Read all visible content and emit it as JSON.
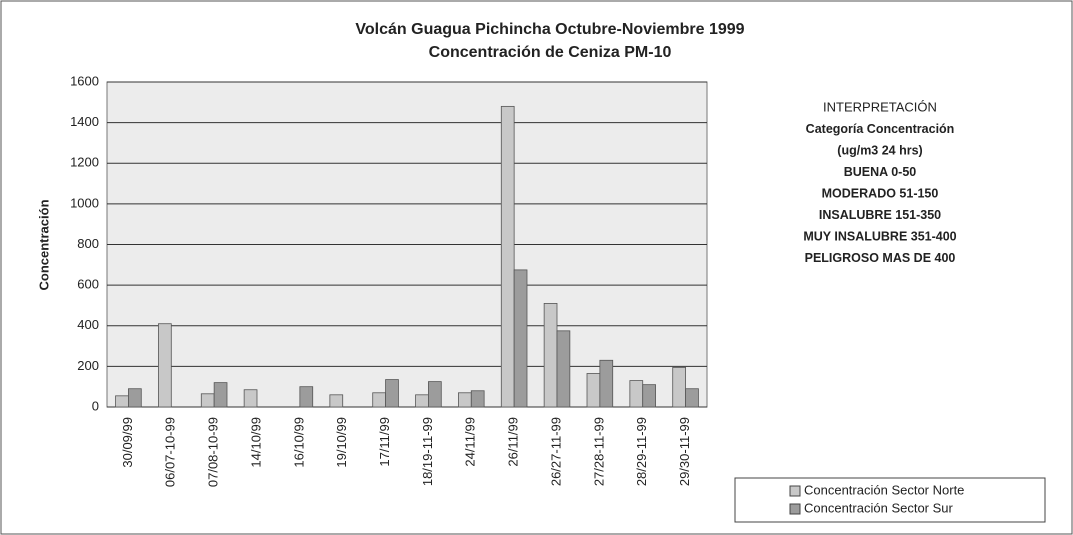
{
  "chart_data": {
    "type": "bar",
    "title": "Volcán Guagua Pichincha Octubre-Noviembre 1999",
    "subtitle": "Concentración de Ceniza PM-10",
    "y_label": "Concentración",
    "categories": [
      "30/09/99",
      "06/07-10-99",
      "07/08-10-99",
      "14/10/99",
      "16/10/99",
      "19/10/99",
      "17/11/99",
      "18/19-11-99",
      "24/11/99",
      "26/11/99",
      "26/27-11-99",
      "27/28-11-99",
      "28/29-11-99",
      "29/30-11-99"
    ],
    "series": [
      {
        "name": "Concentración Sector Norte",
        "color": "#c8c8c8",
        "values": [
          55,
          410,
          65,
          85,
          0,
          60,
          70,
          60,
          70,
          1480,
          510,
          165,
          130,
          195
        ]
      },
      {
        "name": "Concentración Sector Sur",
        "color": "#9c9c9c",
        "values": [
          90,
          0,
          120,
          0,
          100,
          0,
          135,
          125,
          80,
          675,
          375,
          230,
          110,
          90
        ]
      }
    ],
    "ylim": [
      0,
      1600
    ],
    "yticks": [
      0,
      200,
      400,
      600,
      800,
      1000,
      1200,
      1400,
      1600
    ],
    "grid": true,
    "annotations": [
      "INTERPRETACIÓN",
      "Categoría  Concentración",
      "(ug/m3 24 hrs)",
      "BUENA  0-50",
      "MODERADO 51-150",
      "INSALUBRE 151-350",
      "MUY INSALUBRE 351-400",
      "PELIGROSO MAS DE 400"
    ],
    "legend": "bottom-right"
  }
}
